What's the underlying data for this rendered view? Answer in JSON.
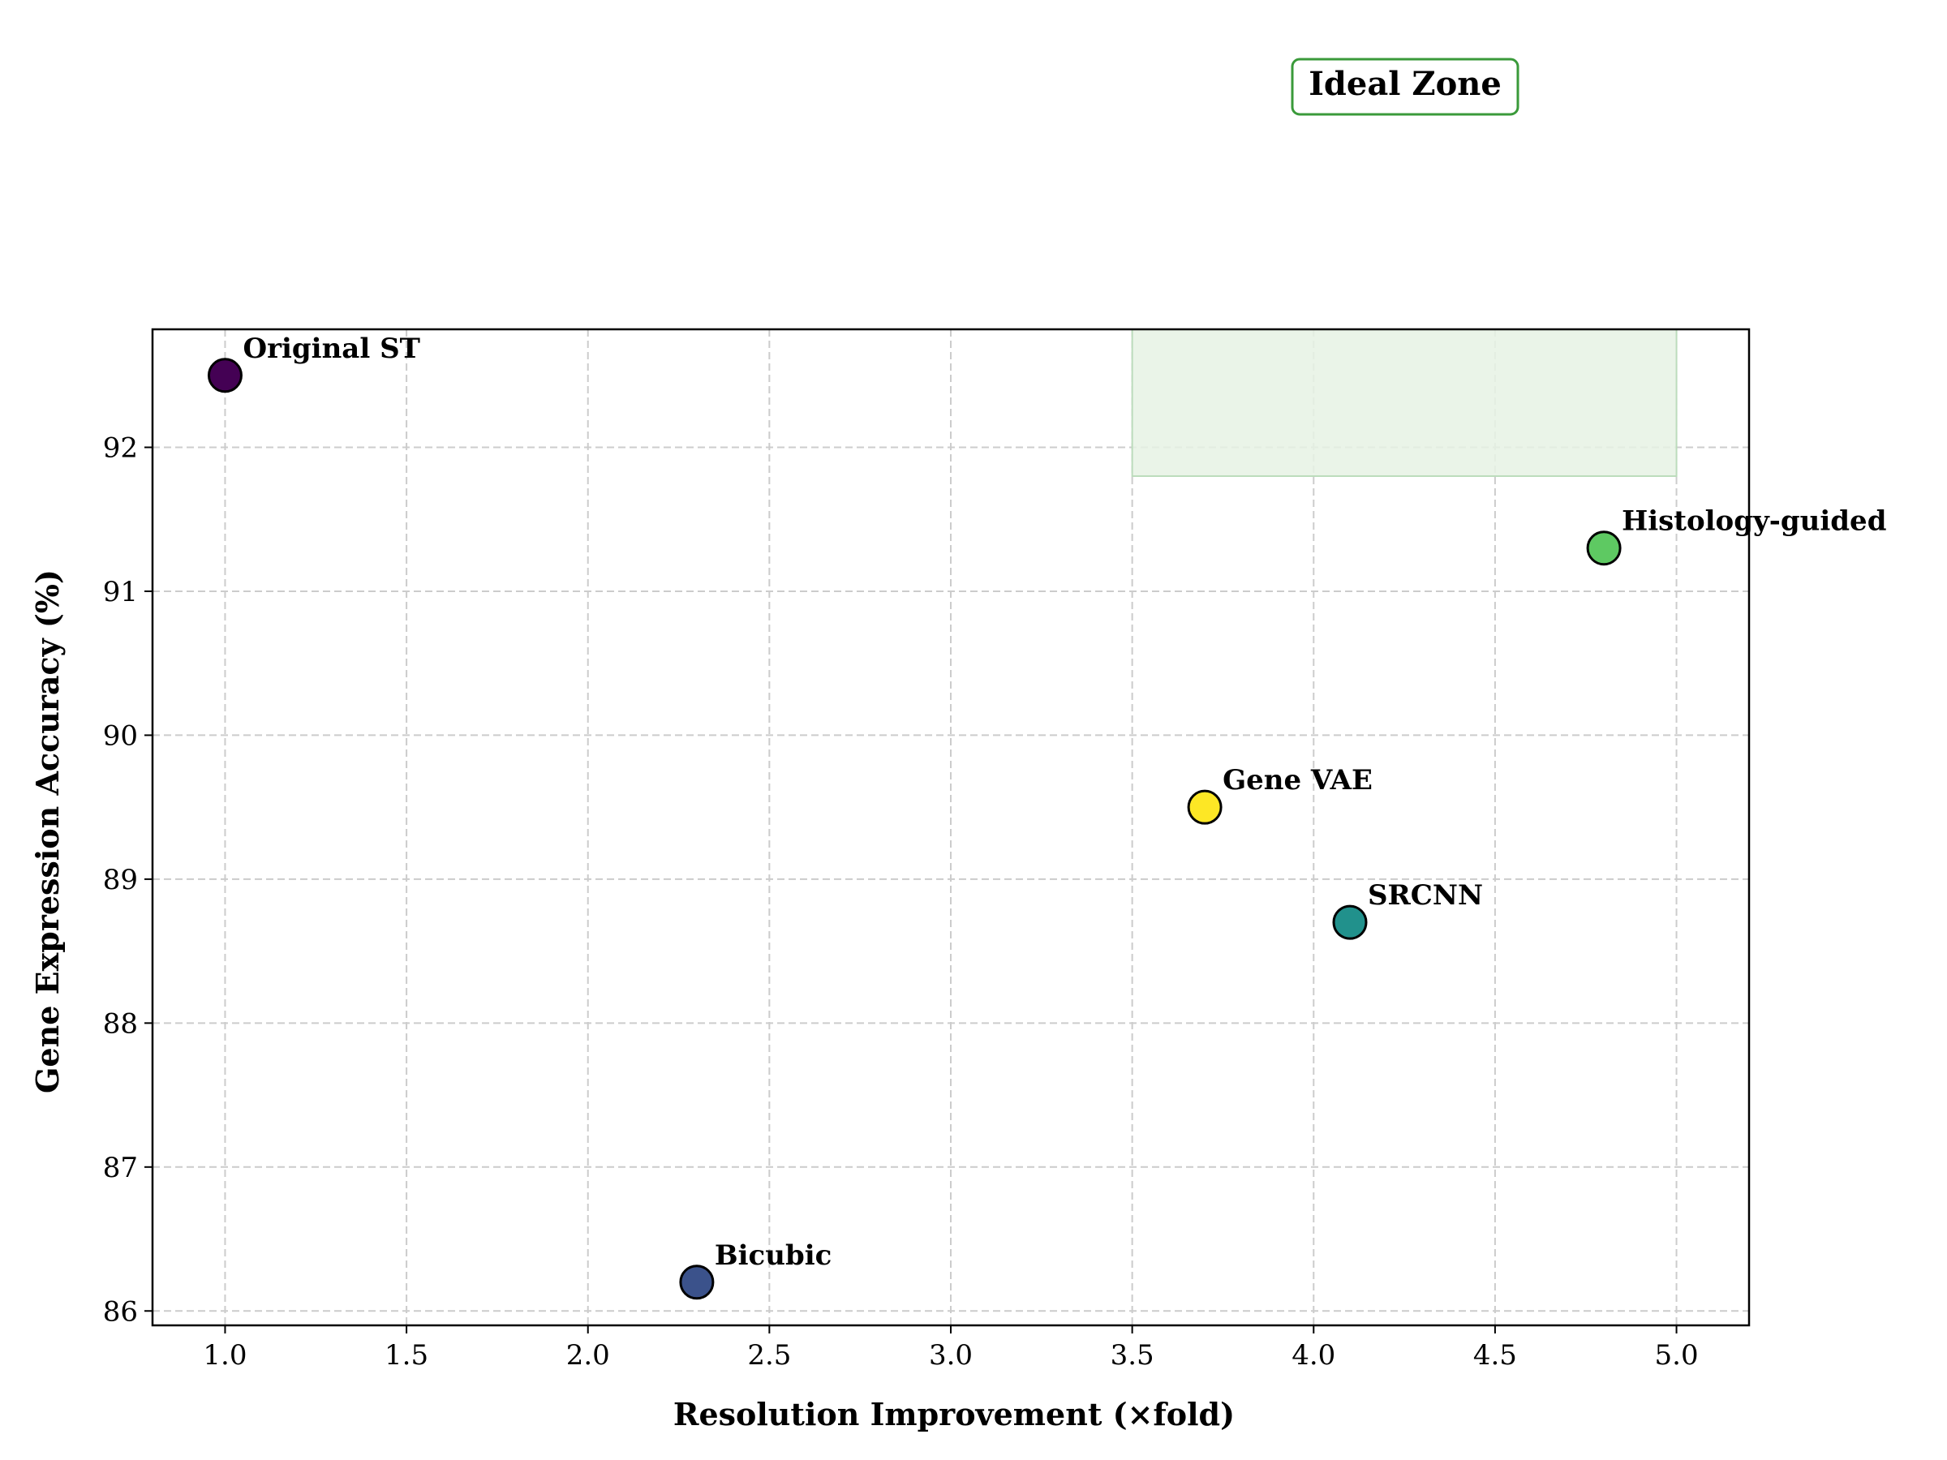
{
  "chart_data": {
    "type": "scatter",
    "xlabel": "Resolution Improvement (×fold)",
    "ylabel": "Gene Expression Accuracy (%)",
    "xlim": [
      0.8,
      5.2
    ],
    "ylim": [
      85.9,
      92.82
    ],
    "xticks": [
      "1.0",
      "1.5",
      "2.0",
      "2.5",
      "3.0",
      "3.5",
      "4.0",
      "4.5",
      "5.0"
    ],
    "yticks": [
      "86",
      "87",
      "88",
      "89",
      "90",
      "91",
      "92"
    ],
    "grid": true,
    "points": [
      {
        "label": "Original ST",
        "x": 1.0,
        "y": 92.5,
        "color": "#440154"
      },
      {
        "label": "Bicubic",
        "x": 2.3,
        "y": 86.2,
        "color": "#3b528b"
      },
      {
        "label": "Gene VAE",
        "x": 3.7,
        "y": 89.5,
        "color": "#fde725"
      },
      {
        "label": "SRCNN",
        "x": 4.1,
        "y": 88.7,
        "color": "#21918c"
      },
      {
        "label": "Histology-guided",
        "x": 4.8,
        "y": 91.3,
        "color": "#5ec962"
      }
    ],
    "ideal_zone": {
      "label": "Ideal Zone",
      "x_range": [
        3.5,
        5.0
      ],
      "y_range": [
        91.8,
        92.82
      ],
      "fill_color": "#e6f2e4",
      "border_color": "#3a9a3a"
    }
  }
}
